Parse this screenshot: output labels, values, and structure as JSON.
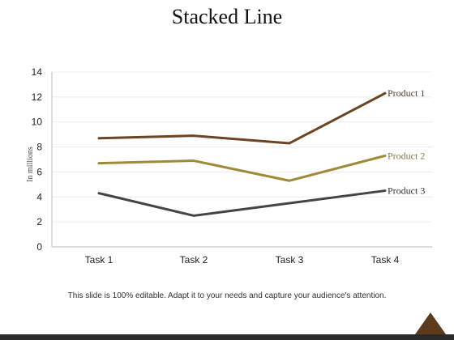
{
  "slide": {
    "title": "Stacked Line",
    "footer_note": "This slide is 100% editable. Adapt it to your needs and capture your audience's attention."
  },
  "chart_data": {
    "type": "line",
    "title": "Stacked Line",
    "xlabel": "",
    "ylabel": "In millions",
    "categories": [
      "Task 1",
      "Task 2",
      "Task 3",
      "Task 4"
    ],
    "ylim": [
      0,
      14
    ],
    "yticks": [
      0,
      2,
      4,
      6,
      8,
      10,
      12,
      14
    ],
    "grid": true,
    "legend": "labels at line ends (right)",
    "series": [
      {
        "name": "Product 1",
        "values": [
          8.7,
          8.9,
          8.3,
          12.3
        ],
        "color": "#6b4423",
        "label_color": "#5a3a1e"
      },
      {
        "name": "Product 2",
        "values": [
          6.7,
          6.9,
          5.3,
          7.3
        ],
        "color": "#a08a3a",
        "label_color": "#8f7b33"
      },
      {
        "name": "Product 3",
        "values": [
          4.3,
          2.5,
          3.5,
          4.5
        ],
        "color": "#444444",
        "label_color": "#333333"
      }
    ]
  }
}
